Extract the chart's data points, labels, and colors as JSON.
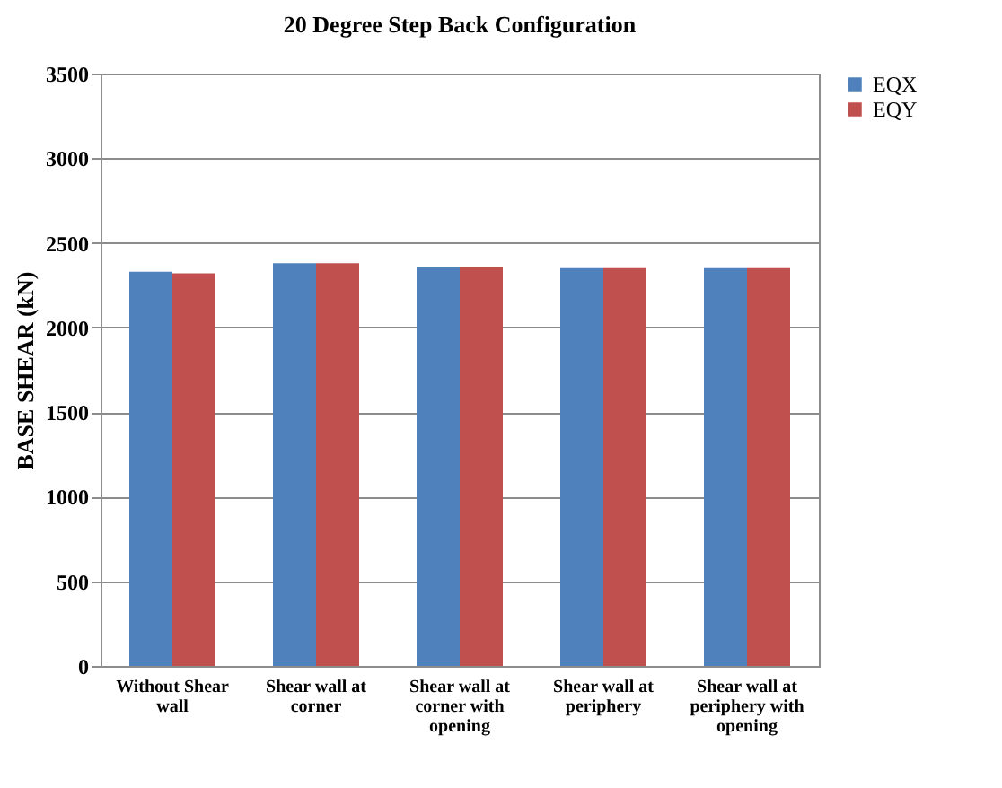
{
  "chart_data": {
    "type": "bar",
    "title": "20 Degree Step Back Configuration",
    "ylabel": "BASE SHEAR (kN)",
    "categories": [
      "Without Shear wall",
      "Shear wall at corner",
      "Shear wall at corner with opening",
      "Shear wall at periphery",
      "Shear wall at periphery with opening"
    ],
    "series": [
      {
        "name": "EQX",
        "color": "#4f81bd",
        "values": [
          2330,
          2380,
          2360,
          2350,
          2350
        ]
      },
      {
        "name": "EQY",
        "color": "#c0504d",
        "values": [
          2320,
          2380,
          2360,
          2350,
          2350
        ]
      }
    ],
    "ylim": [
      0,
      3500
    ],
    "yticks": [
      0,
      500,
      1000,
      1500,
      2000,
      2500,
      3000,
      3500
    ],
    "grid": "y",
    "legend": "right"
  }
}
